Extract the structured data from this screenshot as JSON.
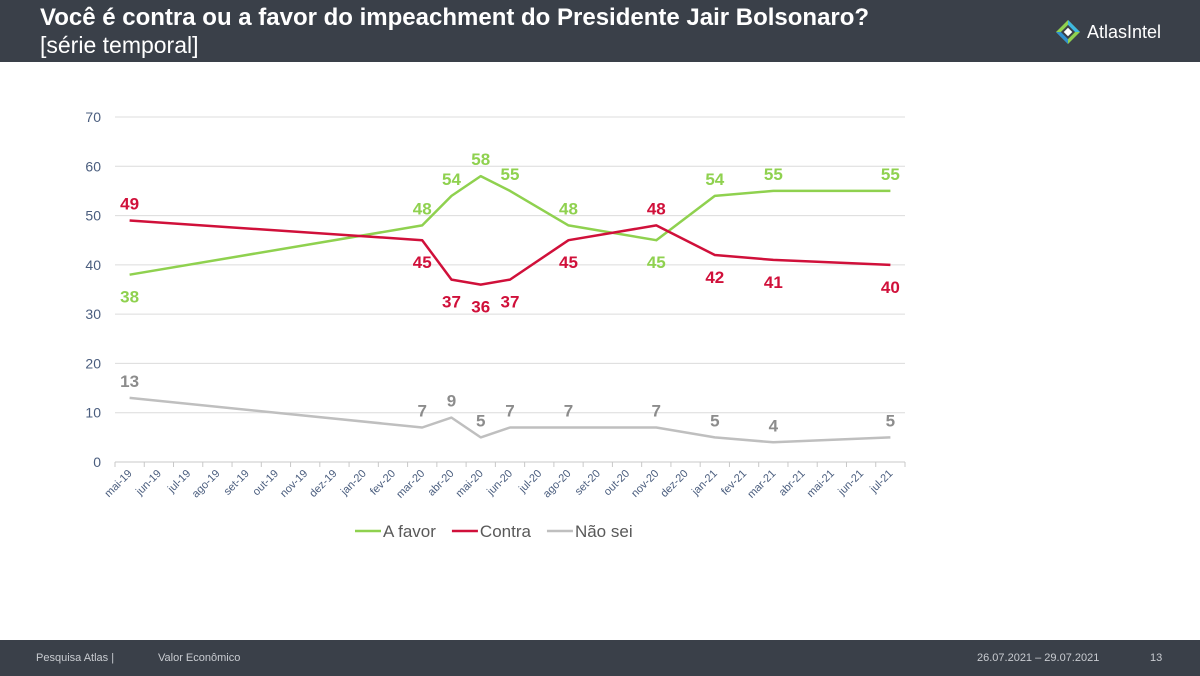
{
  "header": {
    "title": "Você é contra ou a favor do impeachment do Presidente Jair Bolsonaro?",
    "subtitle": "[série temporal]",
    "logo_text": "AtlasIntel"
  },
  "colors": {
    "a_favor": "#8fd14f",
    "contra": "#d0103a",
    "nao_sei": "#bfbfbf",
    "header_bg": "#3a4049",
    "axis_text": "#4a5d7e"
  },
  "chart_data": {
    "type": "line",
    "categories": [
      "mai-19",
      "jun-19",
      "jul-19",
      "ago-19",
      "set-19",
      "out-19",
      "nov-19",
      "dez-19",
      "jan-20",
      "fev-20",
      "mar-20",
      "abr-20",
      "mai-20",
      "jun-20",
      "jul-20",
      "ago-20",
      "set-20",
      "out-20",
      "nov-20",
      "dez-20",
      "jan-21",
      "fev-21",
      "mar-21",
      "abr-21",
      "mai-21",
      "jun-21",
      "jul-21"
    ],
    "ylim": [
      0,
      70
    ],
    "yticks": [
      0,
      10,
      20,
      30,
      40,
      50,
      60,
      70
    ],
    "grid": true,
    "legend_position": "bottom",
    "series": [
      {
        "name": "A favor",
        "color": "#8fd14f",
        "label_side": "up",
        "points": [
          {
            "x": "mai-19",
            "y": 38,
            "label_pos": "below"
          },
          {
            "x": "mar-20",
            "y": 48,
            "label_pos": "above"
          },
          {
            "x": "abr-20",
            "y": 54,
            "label_pos": "above"
          },
          {
            "x": "mai-20",
            "y": 58,
            "label_pos": "above"
          },
          {
            "x": "jun-20",
            "y": 55,
            "label_pos": "above"
          },
          {
            "x": "ago-20",
            "y": 48,
            "label_pos": "above"
          },
          {
            "x": "nov-20",
            "y": 45,
            "label_pos": "below"
          },
          {
            "x": "jan-21",
            "y": 54,
            "label_pos": "above"
          },
          {
            "x": "mar-21",
            "y": 55,
            "label_pos": "above"
          },
          {
            "x": "jul-21",
            "y": 55,
            "label_pos": "above"
          }
        ]
      },
      {
        "name": "Contra",
        "color": "#d0103a",
        "points": [
          {
            "x": "mai-19",
            "y": 49,
            "label_pos": "above"
          },
          {
            "x": "mar-20",
            "y": 45,
            "label_pos": "below"
          },
          {
            "x": "abr-20",
            "y": 37,
            "label_pos": "below"
          },
          {
            "x": "mai-20",
            "y": 36,
            "label_pos": "below"
          },
          {
            "x": "jun-20",
            "y": 37,
            "label_pos": "below"
          },
          {
            "x": "ago-20",
            "y": 45,
            "label_pos": "below"
          },
          {
            "x": "nov-20",
            "y": 48,
            "label_pos": "above"
          },
          {
            "x": "jan-21",
            "y": 42,
            "label_pos": "below"
          },
          {
            "x": "mar-21",
            "y": 41,
            "label_pos": "below"
          },
          {
            "x": "jul-21",
            "y": 40,
            "label_pos": "below"
          }
        ]
      },
      {
        "name": "Não sei",
        "color": "#bfbfbf",
        "points": [
          {
            "x": "mai-19",
            "y": 13,
            "label_pos": "above"
          },
          {
            "x": "mar-20",
            "y": 7,
            "label_pos": "above"
          },
          {
            "x": "abr-20",
            "y": 9,
            "label_pos": "above"
          },
          {
            "x": "mai-20",
            "y": 5,
            "label_pos": "above"
          },
          {
            "x": "jun-20",
            "y": 7,
            "label_pos": "above"
          },
          {
            "x": "ago-20",
            "y": 7,
            "label_pos": "above"
          },
          {
            "x": "nov-20",
            "y": 7,
            "label_pos": "above"
          },
          {
            "x": "jan-21",
            "y": 5,
            "label_pos": "above"
          },
          {
            "x": "mar-21",
            "y": 4,
            "label_pos": "above"
          },
          {
            "x": "jul-21",
            "y": 5,
            "label_pos": "above"
          }
        ]
      }
    ]
  },
  "footer": {
    "source": "Pesquisa Atlas  |",
    "client": "Valor Econômico",
    "dates": "26.07.2021 – 29.07.2021",
    "page": "13"
  }
}
